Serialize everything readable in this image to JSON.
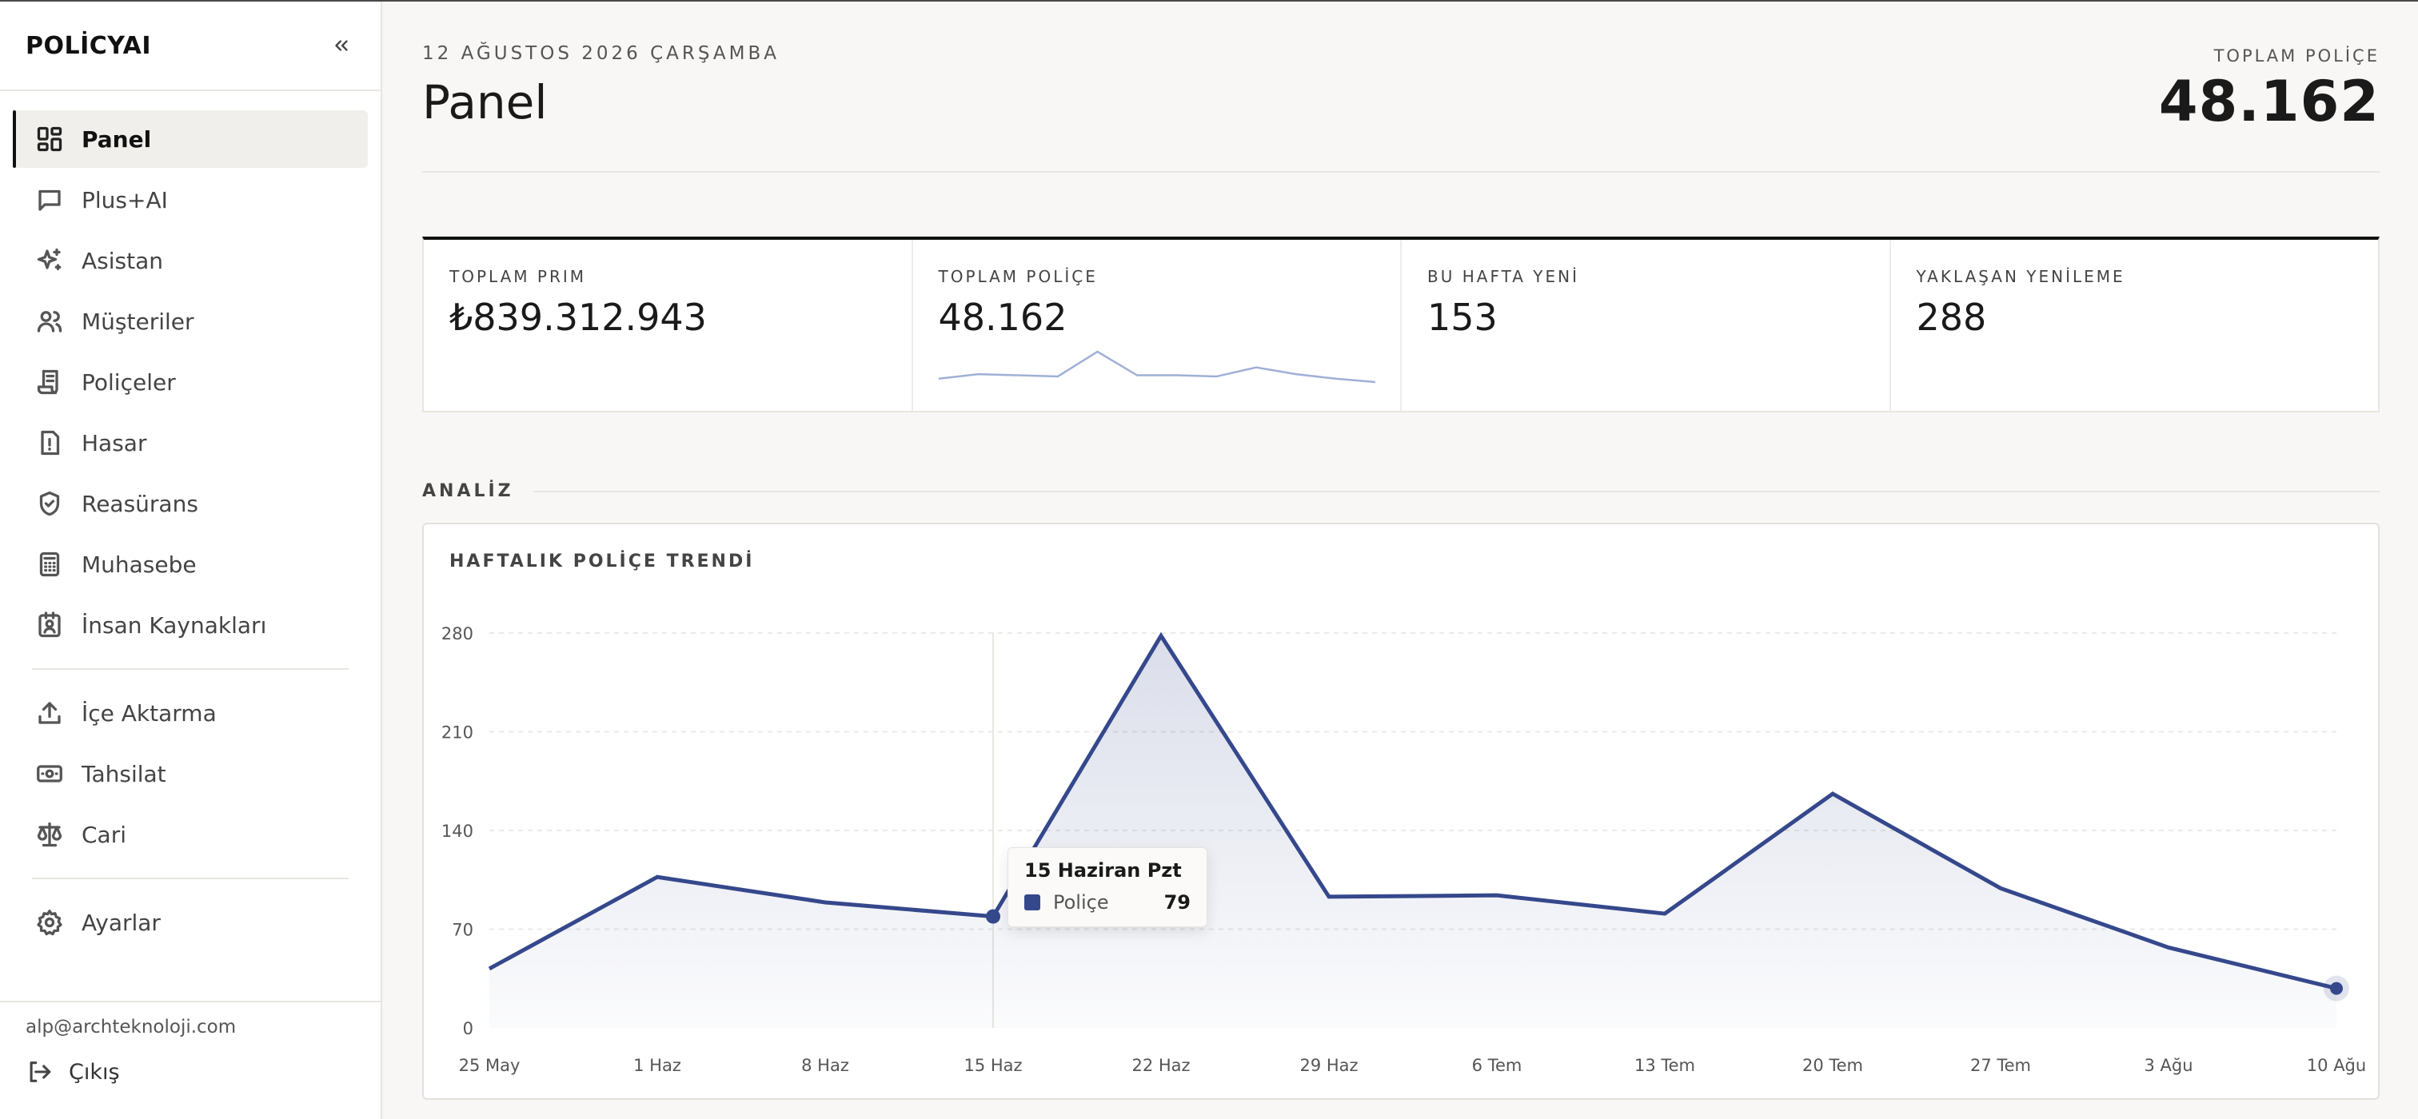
{
  "sidebar": {
    "brand": "POLİCYAI",
    "nav_primary": [
      {
        "label": "Panel",
        "icon": "dashboard-icon",
        "active": true
      },
      {
        "label": "Plus+AI",
        "icon": "chat-icon"
      },
      {
        "label": "Asistan",
        "icon": "sparkles-icon"
      },
      {
        "label": "Müşteriler",
        "icon": "users-icon"
      },
      {
        "label": "Poliçeler",
        "icon": "scroll-icon"
      },
      {
        "label": "Hasar",
        "icon": "alert-file-icon"
      },
      {
        "label": "Reasürans",
        "icon": "shield-check-icon"
      },
      {
        "label": "Muhasebe",
        "icon": "calculator-icon"
      },
      {
        "label": "İnsan Kaynakları",
        "icon": "id-badge-icon"
      }
    ],
    "nav_secondary": [
      {
        "label": "İçe Aktarma",
        "icon": "upload-icon"
      },
      {
        "label": "Tahsilat",
        "icon": "banknote-icon"
      },
      {
        "label": "Cari",
        "icon": "scale-icon"
      }
    ],
    "nav_tertiary": [
      {
        "label": "Ayarlar",
        "icon": "gear-icon"
      }
    ],
    "user_email": "alp@archteknoloji.com",
    "logout_label": "Çıkış"
  },
  "header": {
    "date": "12 AĞUSTOS 2026 ÇARŞAMBA",
    "title": "Panel",
    "total_label": "TOPLAM POLİÇE",
    "total_value": "48.162"
  },
  "stats": [
    {
      "label": "TOPLAM PRIM",
      "value": "₺839.312.943"
    },
    {
      "label": "TOPLAM POLİÇE",
      "value": "48.162"
    },
    {
      "label": "BU HAFTA YENİ",
      "value": "153"
    },
    {
      "label": "YAKLAŞAN YENİLEME",
      "value": "288"
    }
  ],
  "section_label": "ANALİZ",
  "chart_data": {
    "type": "area",
    "title": "HAFTALIK POLİÇE TRENDİ",
    "categories": [
      "25 May",
      "1 Haz",
      "8 Haz",
      "15 Haz",
      "22 Haz",
      "29 Haz",
      "6 Tem",
      "13 Tem",
      "20 Tem",
      "27 Tem",
      "3 Ağu",
      "10 Ağu"
    ],
    "series": [
      {
        "name": "Poliçe",
        "values": [
          42,
          107,
          89,
          79,
          278,
          93,
          94,
          81,
          166,
          99,
          57,
          28
        ]
      }
    ],
    "yticks": [
      "0",
      "70",
      "140",
      "210",
      "280"
    ],
    "ylim": [
      0,
      280
    ],
    "color": "#35488c",
    "grid": "horizontal dotted",
    "tooltip": {
      "title": "15 Haziran Pzt",
      "series": "Poliçe",
      "value": "79",
      "index": 3
    }
  },
  "sparkline_values": [
    6,
    10,
    9,
    8,
    30,
    9,
    9,
    8,
    16,
    10,
    6,
    3
  ]
}
